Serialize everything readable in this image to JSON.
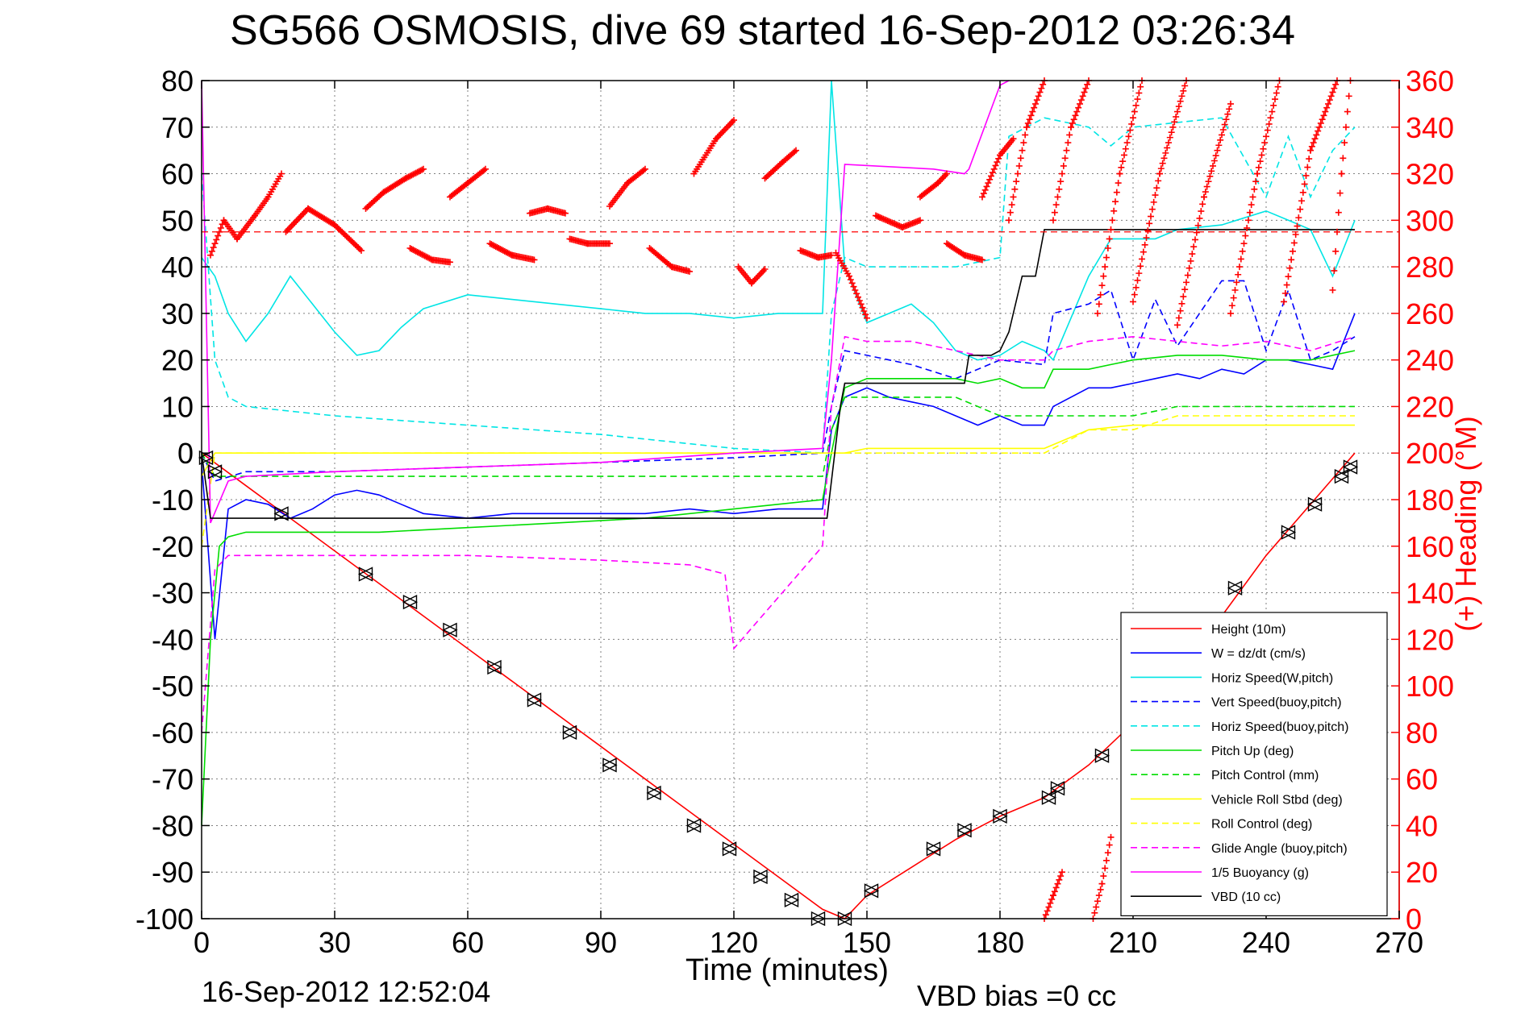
{
  "title": "SG566 OSMOSIS, dive 69 started 16-Sep-2012 03:26:34",
  "footer": {
    "timestamp": "16-Sep-2012 12:52:04",
    "vbd_bias": "VBD bias =0 cc"
  },
  "chart_data": {
    "type": "line",
    "xlabel": "Time (minutes)",
    "ylabel_right": "(+) Heading (°M)",
    "xlim": [
      0,
      270
    ],
    "ylim_left": [
      -100,
      80
    ],
    "ylim_right": [
      0,
      360
    ],
    "x_ticks": [
      "0",
      "30",
      "60",
      "90",
      "120",
      "150",
      "180",
      "210",
      "240",
      "270"
    ],
    "y_left_ticks": [
      "80",
      "70",
      "60",
      "50",
      "40",
      "30",
      "20",
      "10",
      "0",
      "-10",
      "-20",
      "-30",
      "-40",
      "-50",
      "-60",
      "-70",
      "-80",
      "-90",
      "-100"
    ],
    "y_right_ticks": [
      "360",
      "340",
      "320",
      "300",
      "280",
      "260",
      "240",
      "220",
      "200",
      "180",
      "160",
      "140",
      "120",
      "100",
      "80",
      "60",
      "40",
      "20",
      "0"
    ],
    "grid": true,
    "legend_position": "bottom-right",
    "colors": {
      "red": "#ff0000",
      "blue": "#0000ff",
      "cyan": "#00e5e5",
      "green": "#00dd00",
      "yellow": "#ffff00",
      "magenta": "#ff00ff",
      "black": "#000000"
    },
    "series": [
      {
        "name": "Height (10m)",
        "color": "#ff0000",
        "dash": false,
        "x": [
          0,
          10,
          20,
          30,
          40,
          50,
          60,
          70,
          80,
          90,
          100,
          110,
          120,
          130,
          140,
          145,
          150,
          160,
          170,
          180,
          190,
          200,
          210,
          220,
          230,
          240,
          250,
          260
        ],
        "values": [
          0,
          -7,
          -14,
          -21,
          -28,
          -35,
          -42,
          -49,
          -56,
          -63,
          -70,
          -77,
          -84,
          -91,
          -98,
          -100,
          -95,
          -89,
          -83,
          -78,
          -74,
          -67,
          -58,
          -47,
          -35,
          -22,
          -11,
          0
        ]
      },
      {
        "name": "W = dz/dt (cm/s)",
        "color": "#0000ff",
        "dash": false,
        "x": [
          0,
          3,
          6,
          10,
          15,
          20,
          25,
          30,
          35,
          40,
          45,
          50,
          60,
          70,
          80,
          90,
          100,
          110,
          120,
          130,
          140,
          142,
          145,
          150,
          155,
          160,
          165,
          170,
          175,
          180,
          185,
          190,
          192,
          200,
          205,
          210,
          215,
          220,
          225,
          230,
          235,
          240,
          245,
          250,
          255,
          260
        ],
        "values": [
          -2,
          -40,
          -12,
          -10,
          -11,
          -14,
          -12,
          -9,
          -8,
          -9,
          -11,
          -13,
          -14,
          -13,
          -13,
          -13,
          -13,
          -12,
          -13,
          -12,
          -12,
          5,
          12,
          14,
          12,
          11,
          10,
          8,
          6,
          8,
          6,
          6,
          10,
          14,
          14,
          15,
          16,
          17,
          16,
          18,
          17,
          20,
          20,
          19,
          18,
          30
        ]
      },
      {
        "name": "Horiz Speed(W,pitch)",
        "color": "#00e5e5",
        "dash": false,
        "x": [
          0,
          3,
          6,
          10,
          15,
          20,
          25,
          30,
          35,
          40,
          45,
          50,
          60,
          70,
          80,
          90,
          100,
          110,
          120,
          130,
          140,
          142,
          145,
          150,
          160,
          165,
          170,
          175,
          180,
          185,
          190,
          192,
          200,
          205,
          210,
          215,
          220,
          230,
          240,
          245,
          250,
          255,
          260
        ],
        "values": [
          42,
          38,
          30,
          24,
          30,
          38,
          32,
          26,
          21,
          22,
          27,
          31,
          34,
          33,
          32,
          31,
          30,
          30,
          29,
          30,
          30,
          80,
          40,
          28,
          32,
          28,
          22,
          20,
          21,
          24,
          22,
          20,
          38,
          46,
          46,
          46,
          48,
          49,
          52,
          50,
          48,
          38,
          50
        ]
      },
      {
        "name": "Vert Speed(buoy,pitch)",
        "color": "#0000ff",
        "dash": true,
        "x": [
          0,
          3,
          10,
          30,
          60,
          90,
          120,
          140,
          142,
          145,
          150,
          160,
          170,
          180,
          190,
          192,
          200,
          205,
          210,
          215,
          220,
          230,
          235,
          240,
          245,
          250,
          255,
          260
        ],
        "values": [
          0,
          -6,
          -4,
          -4,
          -3,
          -2,
          -1,
          0,
          10,
          22,
          21,
          19,
          16,
          20,
          19,
          30,
          32,
          35,
          20,
          33,
          23,
          37,
          37,
          22,
          35,
          20,
          22,
          25
        ]
      },
      {
        "name": "Horiz Speed(buoy,pitch)",
        "color": "#00e5e5",
        "dash": true,
        "x": [
          0,
          3,
          6,
          10,
          20,
          30,
          60,
          90,
          120,
          140,
          142,
          145,
          150,
          160,
          170,
          175,
          180,
          182,
          190,
          200,
          205,
          210,
          220,
          230,
          240,
          245,
          250,
          255,
          260
        ],
        "values": [
          60,
          20,
          12,
          10,
          9,
          8,
          6,
          4,
          1,
          0,
          30,
          42,
          40,
          40,
          40,
          41,
          42,
          68,
          72,
          70,
          66,
          70,
          71,
          72,
          55,
          68,
          55,
          65,
          70
        ]
      },
      {
        "name": "Pitch Up (deg)",
        "color": "#00dd00",
        "dash": false,
        "x": [
          0,
          2,
          4,
          6,
          10,
          20,
          30,
          40,
          60,
          80,
          100,
          120,
          140,
          142,
          145,
          150,
          160,
          170,
          175,
          180,
          185,
          190,
          192,
          200,
          205,
          210,
          220,
          230,
          240,
          250,
          260
        ],
        "values": [
          -80,
          -40,
          -20,
          -18,
          -17,
          -17,
          -17,
          -17,
          -16,
          -15,
          -14,
          -12,
          -10,
          0,
          14,
          16,
          16,
          16,
          15,
          16,
          14,
          14,
          18,
          18,
          19,
          20,
          21,
          21,
          20,
          20,
          22
        ]
      },
      {
        "name": "Pitch Control (mm)",
        "color": "#00dd00",
        "dash": true,
        "x": [
          0,
          3,
          10,
          30,
          60,
          90,
          120,
          140,
          142,
          145,
          150,
          160,
          170,
          180,
          190,
          192,
          200,
          210,
          220,
          230,
          240,
          250,
          260
        ],
        "values": [
          0,
          -5,
          -5,
          -5,
          -5,
          -5,
          -5,
          -5,
          5,
          12,
          12,
          12,
          12,
          8,
          8,
          8,
          8,
          8,
          10,
          10,
          10,
          10,
          10
        ]
      },
      {
        "name": "Vehicle Roll Stbd (deg)",
        "color": "#ffff00",
        "dash": false,
        "x": [
          0,
          3,
          10,
          30,
          60,
          90,
          120,
          140,
          145,
          150,
          160,
          170,
          180,
          190,
          200,
          210,
          220,
          230,
          240,
          250,
          260
        ],
        "values": [
          -5,
          0,
          0,
          0,
          0,
          0,
          0,
          0,
          0,
          1,
          1,
          1,
          1,
          1,
          5,
          6,
          6,
          6,
          6,
          6,
          6
        ]
      },
      {
        "name": "Roll Control (deg)",
        "color": "#ffff00",
        "dash": true,
        "x": [
          0,
          3,
          10,
          30,
          60,
          90,
          120,
          140,
          145,
          150,
          170,
          190,
          200,
          210,
          220,
          240,
          260
        ],
        "values": [
          -20,
          0,
          0,
          0,
          0,
          0,
          0,
          0,
          0,
          0,
          0,
          0,
          5,
          5,
          8,
          8,
          8
        ]
      },
      {
        "name": "Glide Angle (buoy,pitch)",
        "color": "#ff00ff",
        "dash": true,
        "x": [
          0,
          3,
          6,
          10,
          20,
          30,
          60,
          90,
          110,
          118,
          120,
          140,
          142,
          145,
          150,
          160,
          170,
          180,
          190,
          192,
          200,
          210,
          220,
          230,
          240,
          250,
          260
        ],
        "values": [
          -60,
          -25,
          -22,
          -22,
          -22,
          -22,
          -22,
          -23,
          -24,
          -26,
          -42,
          -20,
          10,
          25,
          24,
          24,
          22,
          20,
          20,
          22,
          24,
          25,
          24,
          23,
          24,
          22,
          25
        ]
      },
      {
        "name": "1/5 Buoyancy (g)",
        "color": "#ff00ff",
        "dash": false,
        "x": [
          0,
          2,
          6,
          10,
          30,
          60,
          90,
          120,
          140,
          142,
          145,
          165,
          172,
          173,
          180,
          182
        ],
        "values": [
          80,
          -15,
          -6,
          -5,
          -4,
          -3,
          -2,
          0,
          1,
          20,
          62,
          61,
          60,
          61,
          79,
          80
        ]
      },
      {
        "name": "VBD (10 cc)",
        "color": "#000000",
        "dash": false,
        "x": [
          0,
          2,
          10,
          30,
          60,
          90,
          120,
          139,
          141,
          144,
          145,
          165,
          170,
          172,
          173,
          178,
          180,
          182,
          185,
          188,
          190,
          191,
          260
        ],
        "values": [
          0,
          -14,
          -14,
          -14,
          -14,
          -14,
          -14,
          -14,
          -14,
          10,
          15,
          15,
          15,
          15,
          21,
          21,
          22,
          26,
          38,
          38,
          48,
          48,
          48
        ]
      }
    ],
    "heading": {
      "name": "(+) Heading (°M)",
      "color": "#ff0000",
      "marker": "+",
      "axis": "right",
      "reference_line": 295,
      "segments": [
        {
          "x": [
            2,
            5,
            8,
            12,
            15,
            18
          ],
          "values": [
            285,
            300,
            292,
            302,
            310,
            320
          ]
        },
        {
          "x": [
            19,
            24,
            30,
            36
          ],
          "values": [
            295,
            305,
            298,
            287
          ]
        },
        {
          "x": [
            37,
            41,
            46,
            50
          ],
          "values": [
            305,
            312,
            318,
            322
          ]
        },
        {
          "x": [
            47,
            52,
            56
          ],
          "values": [
            288,
            283,
            282
          ]
        },
        {
          "x": [
            56,
            60,
            64
          ],
          "values": [
            310,
            316,
            322
          ]
        },
        {
          "x": [
            65,
            70,
            75
          ],
          "values": [
            290,
            285,
            283
          ]
        },
        {
          "x": [
            74,
            78,
            82
          ],
          "values": [
            303,
            305,
            303
          ]
        },
        {
          "x": [
            83,
            87,
            92
          ],
          "values": [
            292,
            290,
            290
          ]
        },
        {
          "x": [
            92,
            96,
            100
          ],
          "values": [
            306,
            316,
            322
          ]
        },
        {
          "x": [
            101,
            106,
            110
          ],
          "values": [
            288,
            280,
            278
          ]
        },
        {
          "x": [
            111,
            116,
            120
          ],
          "values": [
            320,
            335,
            343
          ]
        },
        {
          "x": [
            121,
            124,
            127
          ],
          "values": [
            280,
            273,
            279
          ]
        },
        {
          "x": [
            127,
            131,
            134
          ],
          "values": [
            318,
            325,
            330
          ]
        },
        {
          "x": [
            135,
            139,
            142
          ],
          "values": [
            287,
            284,
            285
          ]
        },
        {
          "x": [
            143,
            146,
            150
          ],
          "values": [
            286,
            276,
            258
          ]
        },
        {
          "x": [
            152,
            158,
            162
          ],
          "values": [
            302,
            297,
            300
          ]
        },
        {
          "x": [
            162,
            166,
            168
          ],
          "values": [
            310,
            316,
            320
          ]
        },
        {
          "x": [
            168,
            172,
            176
          ],
          "values": [
            290,
            285,
            283
          ]
        },
        {
          "x": [
            176,
            180,
            183
          ],
          "values": [
            310,
            328,
            335
          ]
        },
        {
          "x": [
            182,
            186,
            190
          ],
          "values": [
            300,
            340,
            360
          ]
        },
        {
          "x": [
            190,
            192,
            194
          ],
          "values": [
            0,
            10,
            20
          ]
        },
        {
          "x": [
            192,
            196,
            200
          ],
          "values": [
            300,
            340,
            360
          ]
        },
        {
          "x": [
            201,
            203,
            205
          ],
          "values": [
            0,
            15,
            35
          ]
        },
        {
          "x": [
            202,
            207,
            212
          ],
          "values": [
            260,
            320,
            360
          ]
        },
        {
          "x": [
            210,
            216,
            222
          ],
          "values": [
            265,
            320,
            360
          ]
        },
        {
          "x": [
            220,
            226,
            232
          ],
          "values": [
            255,
            310,
            350
          ]
        },
        {
          "x": [
            232,
            238,
            243
          ],
          "values": [
            260,
            320,
            360
          ]
        },
        {
          "x": [
            244,
            250,
            256
          ],
          "values": [
            265,
            330,
            360
          ]
        },
        {
          "x": [
            255,
            257,
            259
          ],
          "values": [
            270,
            320,
            360
          ]
        }
      ]
    },
    "markers": {
      "color": "#000000",
      "x": [
        1,
        3,
        18,
        37,
        47,
        56,
        66,
        75,
        83,
        92,
        102,
        111,
        119,
        126,
        133,
        139,
        145,
        151,
        165,
        172,
        180,
        191,
        193,
        203,
        233,
        245,
        251,
        257,
        259
      ],
      "values": [
        -1,
        -4,
        -13,
        -26,
        -32,
        -38,
        -46,
        -53,
        -60,
        -67,
        -73,
        -80,
        -85,
        -91,
        -96,
        -100,
        -100,
        -94,
        -85,
        -81,
        -78,
        -74,
        -72,
        -65,
        -29,
        -17,
        -11,
        -5,
        -3
      ]
    }
  }
}
